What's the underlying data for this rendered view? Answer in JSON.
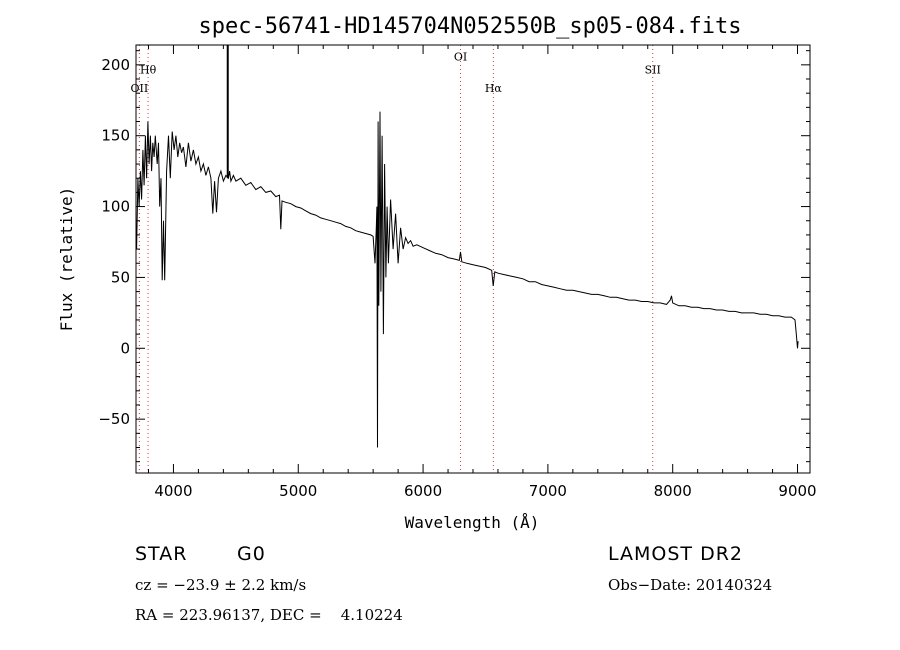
{
  "chart_data": {
    "type": "line",
    "title": "spec-56741-HD145704N052550B_sp05-084.fits",
    "xlabel": "Wavelength (Å)",
    "ylabel": "Flux (relative)",
    "xlim": [
      3700,
      9100
    ],
    "ylim": [
      -88,
      214
    ],
    "xticks": [
      4000,
      5000,
      6000,
      7000,
      8000,
      9000
    ],
    "yticks": [
      -50,
      0,
      50,
      100,
      150,
      200
    ],
    "grid": false,
    "series": [
      {
        "points": [
          [
            3705,
            70
          ],
          [
            3715,
            120
          ],
          [
            3725,
            100
          ],
          [
            3735,
            125
          ],
          [
            3745,
            105
          ],
          [
            3755,
            140
          ],
          [
            3765,
            115
          ],
          [
            3775,
            150
          ],
          [
            3785,
            120
          ],
          [
            3795,
            160
          ],
          [
            3805,
            130
          ],
          [
            3815,
            150
          ],
          [
            3825,
            125
          ],
          [
            3835,
            145
          ],
          [
            3845,
            135
          ],
          [
            3855,
            150
          ],
          [
            3870,
            130
          ],
          [
            3880,
            145
          ],
          [
            3890,
            100
          ],
          [
            3900,
            120
          ],
          [
            3910,
            48
          ],
          [
            3920,
            90
          ],
          [
            3930,
            48
          ],
          [
            3945,
            125
          ],
          [
            3960,
            150
          ],
          [
            3975,
            120
          ],
          [
            3990,
            153
          ],
          [
            4005,
            140
          ],
          [
            4020,
            150
          ],
          [
            4035,
            135
          ],
          [
            4050,
            145
          ],
          [
            4065,
            138
          ],
          [
            4080,
            142
          ],
          [
            4100,
            128
          ],
          [
            4120,
            145
          ],
          [
            4140,
            132
          ],
          [
            4160,
            140
          ],
          [
            4180,
            130
          ],
          [
            4200,
            135
          ],
          [
            4220,
            125
          ],
          [
            4240,
            130
          ],
          [
            4260,
            122
          ],
          [
            4280,
            128
          ],
          [
            4300,
            120
          ],
          [
            4315,
            95
          ],
          [
            4330,
            118
          ],
          [
            4345,
            96
          ],
          [
            4360,
            120
          ],
          [
            4380,
            125
          ],
          [
            4400,
            118
          ],
          [
            4420,
            122
          ],
          [
            4440,
            120
          ],
          [
            4450,
            125
          ],
          [
            4460,
            118
          ],
          [
            4480,
            122
          ],
          [
            4500,
            118
          ],
          [
            4540,
            120
          ],
          [
            4580,
            115
          ],
          [
            4620,
            117
          ],
          [
            4660,
            112
          ],
          [
            4700,
            114
          ],
          [
            4740,
            110
          ],
          [
            4780,
            111
          ],
          [
            4820,
            107
          ],
          [
            4850,
            108
          ],
          [
            4860,
            84
          ],
          [
            4870,
            104
          ],
          [
            4900,
            103
          ],
          [
            4940,
            102
          ],
          [
            4980,
            100
          ],
          [
            5020,
            99
          ],
          [
            5060,
            97
          ],
          [
            5100,
            95
          ],
          [
            5140,
            94
          ],
          [
            5180,
            92
          ],
          [
            5220,
            91
          ],
          [
            5260,
            90
          ],
          [
            5300,
            89
          ],
          [
            5340,
            88
          ],
          [
            5380,
            86
          ],
          [
            5420,
            85
          ],
          [
            5460,
            83
          ],
          [
            5500,
            82
          ],
          [
            5540,
            81
          ],
          [
            5580,
            80
          ],
          [
            5600,
            79
          ],
          [
            5615,
            60
          ],
          [
            5625,
            85
          ],
          [
            5630,
            100
          ],
          [
            5635,
            -70
          ],
          [
            5640,
            160
          ],
          [
            5645,
            30
          ],
          [
            5655,
            167
          ],
          [
            5662,
            40
          ],
          [
            5672,
            150
          ],
          [
            5682,
            10
          ],
          [
            5692,
            130
          ],
          [
            5702,
            50
          ],
          [
            5712,
            100
          ],
          [
            5722,
            60
          ],
          [
            5740,
            105
          ],
          [
            5760,
            70
          ],
          [
            5780,
            95
          ],
          [
            5800,
            60
          ],
          [
            5820,
            85
          ],
          [
            5840,
            70
          ],
          [
            5860,
            78
          ],
          [
            5880,
            74
          ],
          [
            5900,
            76
          ],
          [
            5920,
            72
          ],
          [
            5950,
            73
          ],
          [
            6000,
            71
          ],
          [
            6050,
            69
          ],
          [
            6100,
            67
          ],
          [
            6150,
            66
          ],
          [
            6200,
            64
          ],
          [
            6250,
            63
          ],
          [
            6290,
            62
          ],
          [
            6300,
            68
          ],
          [
            6310,
            61
          ],
          [
            6350,
            60
          ],
          [
            6400,
            59
          ],
          [
            6450,
            58
          ],
          [
            6500,
            57
          ],
          [
            6550,
            55
          ],
          [
            6562,
            44
          ],
          [
            6575,
            54
          ],
          [
            6600,
            53
          ],
          [
            6650,
            52
          ],
          [
            6700,
            51
          ],
          [
            6750,
            50
          ],
          [
            6800,
            49
          ],
          [
            6850,
            47
          ],
          [
            6900,
            47
          ],
          [
            6950,
            45
          ],
          [
            7000,
            44
          ],
          [
            7050,
            43
          ],
          [
            7100,
            42
          ],
          [
            7150,
            41
          ],
          [
            7200,
            41
          ],
          [
            7250,
            40
          ],
          [
            7300,
            39
          ],
          [
            7350,
            38
          ],
          [
            7400,
            38
          ],
          [
            7450,
            37
          ],
          [
            7500,
            36
          ],
          [
            7550,
            36
          ],
          [
            7600,
            35
          ],
          [
            7650,
            34
          ],
          [
            7700,
            34
          ],
          [
            7750,
            33
          ],
          [
            7800,
            33
          ],
          [
            7850,
            32
          ],
          [
            7900,
            32
          ],
          [
            7950,
            31
          ],
          [
            7980,
            34
          ],
          [
            7990,
            37
          ],
          [
            8000,
            32
          ],
          [
            8050,
            30
          ],
          [
            8100,
            30
          ],
          [
            8150,
            29
          ],
          [
            8200,
            29
          ],
          [
            8250,
            28
          ],
          [
            8300,
            28
          ],
          [
            8350,
            27
          ],
          [
            8400,
            27
          ],
          [
            8450,
            26
          ],
          [
            8500,
            26
          ],
          [
            8550,
            25
          ],
          [
            8600,
            25
          ],
          [
            8650,
            25
          ],
          [
            8700,
            24
          ],
          [
            8750,
            24
          ],
          [
            8800,
            23
          ],
          [
            8850,
            23
          ],
          [
            8900,
            22
          ],
          [
            8950,
            22
          ],
          [
            8980,
            20
          ],
          [
            8990,
            10
          ],
          [
            9000,
            0
          ],
          [
            9005,
            5
          ]
        ]
      }
    ],
    "spike": {
      "x": 4435,
      "y0": 120,
      "y1": 214
    },
    "spectral_lines": [
      {
        "label": "OII",
        "x": 3727,
        "labelY": 181
      },
      {
        "label": "Hθ",
        "x": 3797,
        "labelY": 194
      },
      {
        "label": "OI",
        "x": 6300,
        "labelY": 203
      },
      {
        "label": "Hα",
        "x": 6563,
        "labelY": 181
      },
      {
        "label": "SII",
        "x": 7840,
        "labelY": 194
      }
    ],
    "line_color": "#d63b3b",
    "spectrum_color": "#000000"
  },
  "info": {
    "object_class": "STAR",
    "subclass": "G0",
    "survey": "LAMOST DR2",
    "cz": "cz = −23.9 ± 2.2 km/s",
    "obs_date": "Obs−Date: 20140324",
    "coords": "RA = 223.96137, DEC =    4.10224"
  }
}
